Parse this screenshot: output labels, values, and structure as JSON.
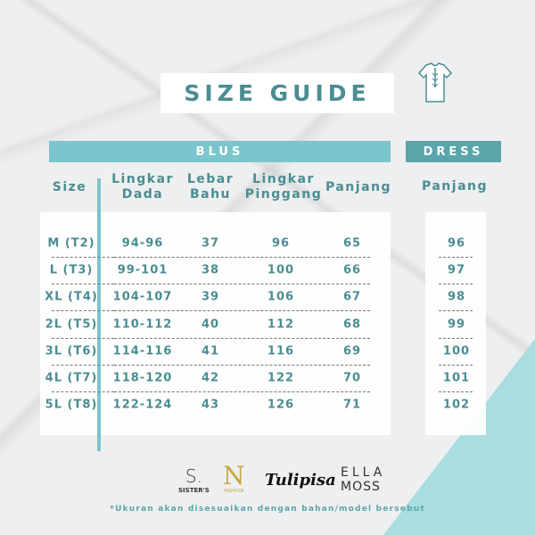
{
  "title": "SIZE GUIDE",
  "blus_label": "BLUS",
  "dress_label": "DRESS",
  "headers": {
    "size": "Size",
    "dada": [
      "Lingkar",
      "Dada"
    ],
    "bahu": [
      "Lebar",
      "Bahu"
    ],
    "pinggang": [
      "Lingkar",
      "Pinggang"
    ],
    "panjang": "Panjang",
    "dress_panjang": "Panjang"
  },
  "rows": [
    {
      "size": "M (T2)",
      "dada": "94-96",
      "bahu": "37",
      "pinggang": "96",
      "panjang": "65",
      "dress": "96"
    },
    {
      "size": "L (T3)",
      "dada": "99-101",
      "bahu": "38",
      "pinggang": "100",
      "panjang": "66",
      "dress": "97"
    },
    {
      "size": "XL (T4)",
      "dada": "104-107",
      "bahu": "39",
      "pinggang": "106",
      "panjang": "67",
      "dress": "98"
    },
    {
      "size": "2L (T5)",
      "dada": "110-112",
      "bahu": "40",
      "pinggang": "112",
      "panjang": "68",
      "dress": "99"
    },
    {
      "size": "3L (T6)",
      "dada": "114-116",
      "bahu": "41",
      "pinggang": "116",
      "panjang": "69",
      "dress": "100"
    },
    {
      "size": "4L (T7)",
      "dada": "118-120",
      "bahu": "42",
      "pinggang": "122",
      "panjang": "70",
      "dress": "101"
    },
    {
      "size": "5L (T8)",
      "dada": "122-124",
      "bahu": "43",
      "pinggang": "126",
      "panjang": "71",
      "dress": "102"
    }
  ],
  "logos": {
    "sisters": [
      "S.",
      "SISTER'S"
    ],
    "n_fashion": "FASHION",
    "tulipisa": "Tulipisa",
    "ella_moss": [
      "ELLA",
      "MOSS"
    ]
  },
  "footnote": "*Ukuran akan disesuaikan dengan bahan/model bersebut",
  "colors": {
    "teal": "#4a8d92",
    "bar": "#7ac6cc",
    "dress_bar": "#5aa5aa",
    "triangle": "#a9dde0"
  }
}
